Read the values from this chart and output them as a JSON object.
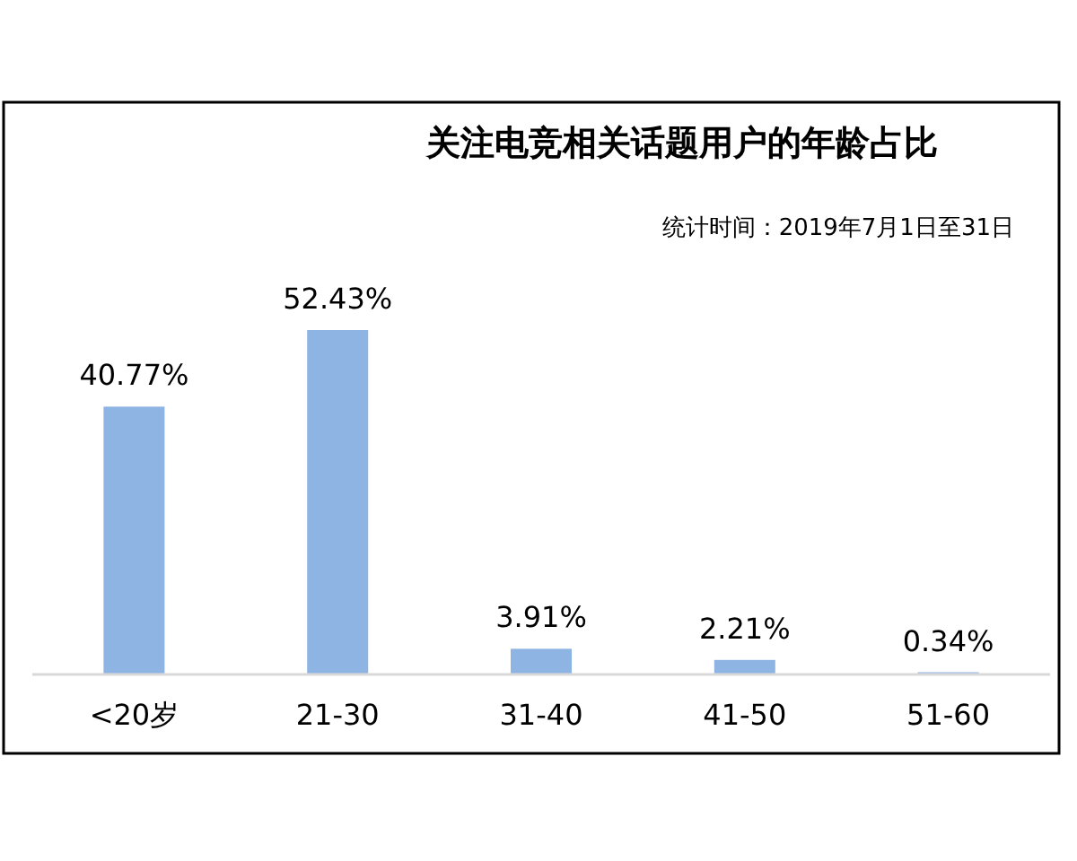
{
  "chart_data": {
    "type": "bar",
    "title": "关注电竞相关话题用户的年龄占比",
    "subtitle": "统计时间：2019年7月1日至31日",
    "categories": [
      "<20岁",
      "21-30",
      "31-40",
      "41-50",
      "51-60"
    ],
    "values": [
      40.77,
      52.43,
      3.91,
      2.21,
      0.34
    ],
    "value_labels": [
      "40.77%",
      "52.43%",
      "3.91%",
      "2.21%",
      "0.34%"
    ],
    "color": "#8eb4e3"
  }
}
